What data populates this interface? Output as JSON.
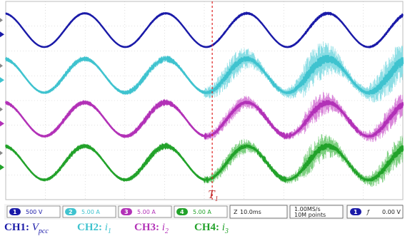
{
  "channels": [
    {
      "id": "1",
      "scale": "500 V",
      "color": "#1a1aa8",
      "sub_color": "#3a3ae0",
      "baseline_frac": 0.145,
      "amp_frac": 0.085,
      "noise": [
        0.05,
        0.06,
        0.08,
        0.1
      ]
    },
    {
      "id": "2",
      "scale": "5.00 A",
      "color": "#3fc3cf",
      "sub_color": "#8adde4",
      "baseline_frac": 0.375,
      "amp_frac": 0.085,
      "noise": [
        0.15,
        0.25,
        0.9,
        1.4
      ]
    },
    {
      "id": "3",
      "scale": "5.00 A",
      "color": "#b231b7",
      "sub_color": "#d985d9",
      "baseline_frac": 0.595,
      "amp_frac": 0.085,
      "noise": [
        0.15,
        0.2,
        0.55,
        0.9
      ]
    },
    {
      "id": "4",
      "scale": "5.00 A",
      "color": "#22a22a",
      "sub_color": "#7ccf7f",
      "baseline_frac": 0.815,
      "amp_frac": 0.085,
      "noise": [
        0.15,
        0.2,
        0.6,
        1.0
      ]
    }
  ],
  "timebase": {
    "scale": "10.0ms",
    "sample_rate": "1.00MS/s",
    "points": "10M points"
  },
  "trigger": {
    "channel": "1",
    "level": "0.00 V"
  },
  "cursor": {
    "label": "T",
    "subscript": "1",
    "time_frac": 0.52
  },
  "legend": [
    {
      "ch": "CH1:",
      "sym": "V",
      "sub": "pcc",
      "color": "#1a1aa8"
    },
    {
      "ch": "CH2:",
      "sym": "i",
      "sub": "1",
      "color": "#3fc3cf"
    },
    {
      "ch": "CH3:",
      "sym": "i",
      "sub": "2",
      "color": "#b231b7"
    },
    {
      "ch": "CH4:",
      "sym": "i",
      "sub": "3",
      "color": "#22a22a"
    }
  ],
  "colors": {
    "grid": "#c7c7c7",
    "background": "#ffffff",
    "cursor": "#e02020",
    "statusbar_border": "#555555"
  },
  "periods_shown": 4.9
}
